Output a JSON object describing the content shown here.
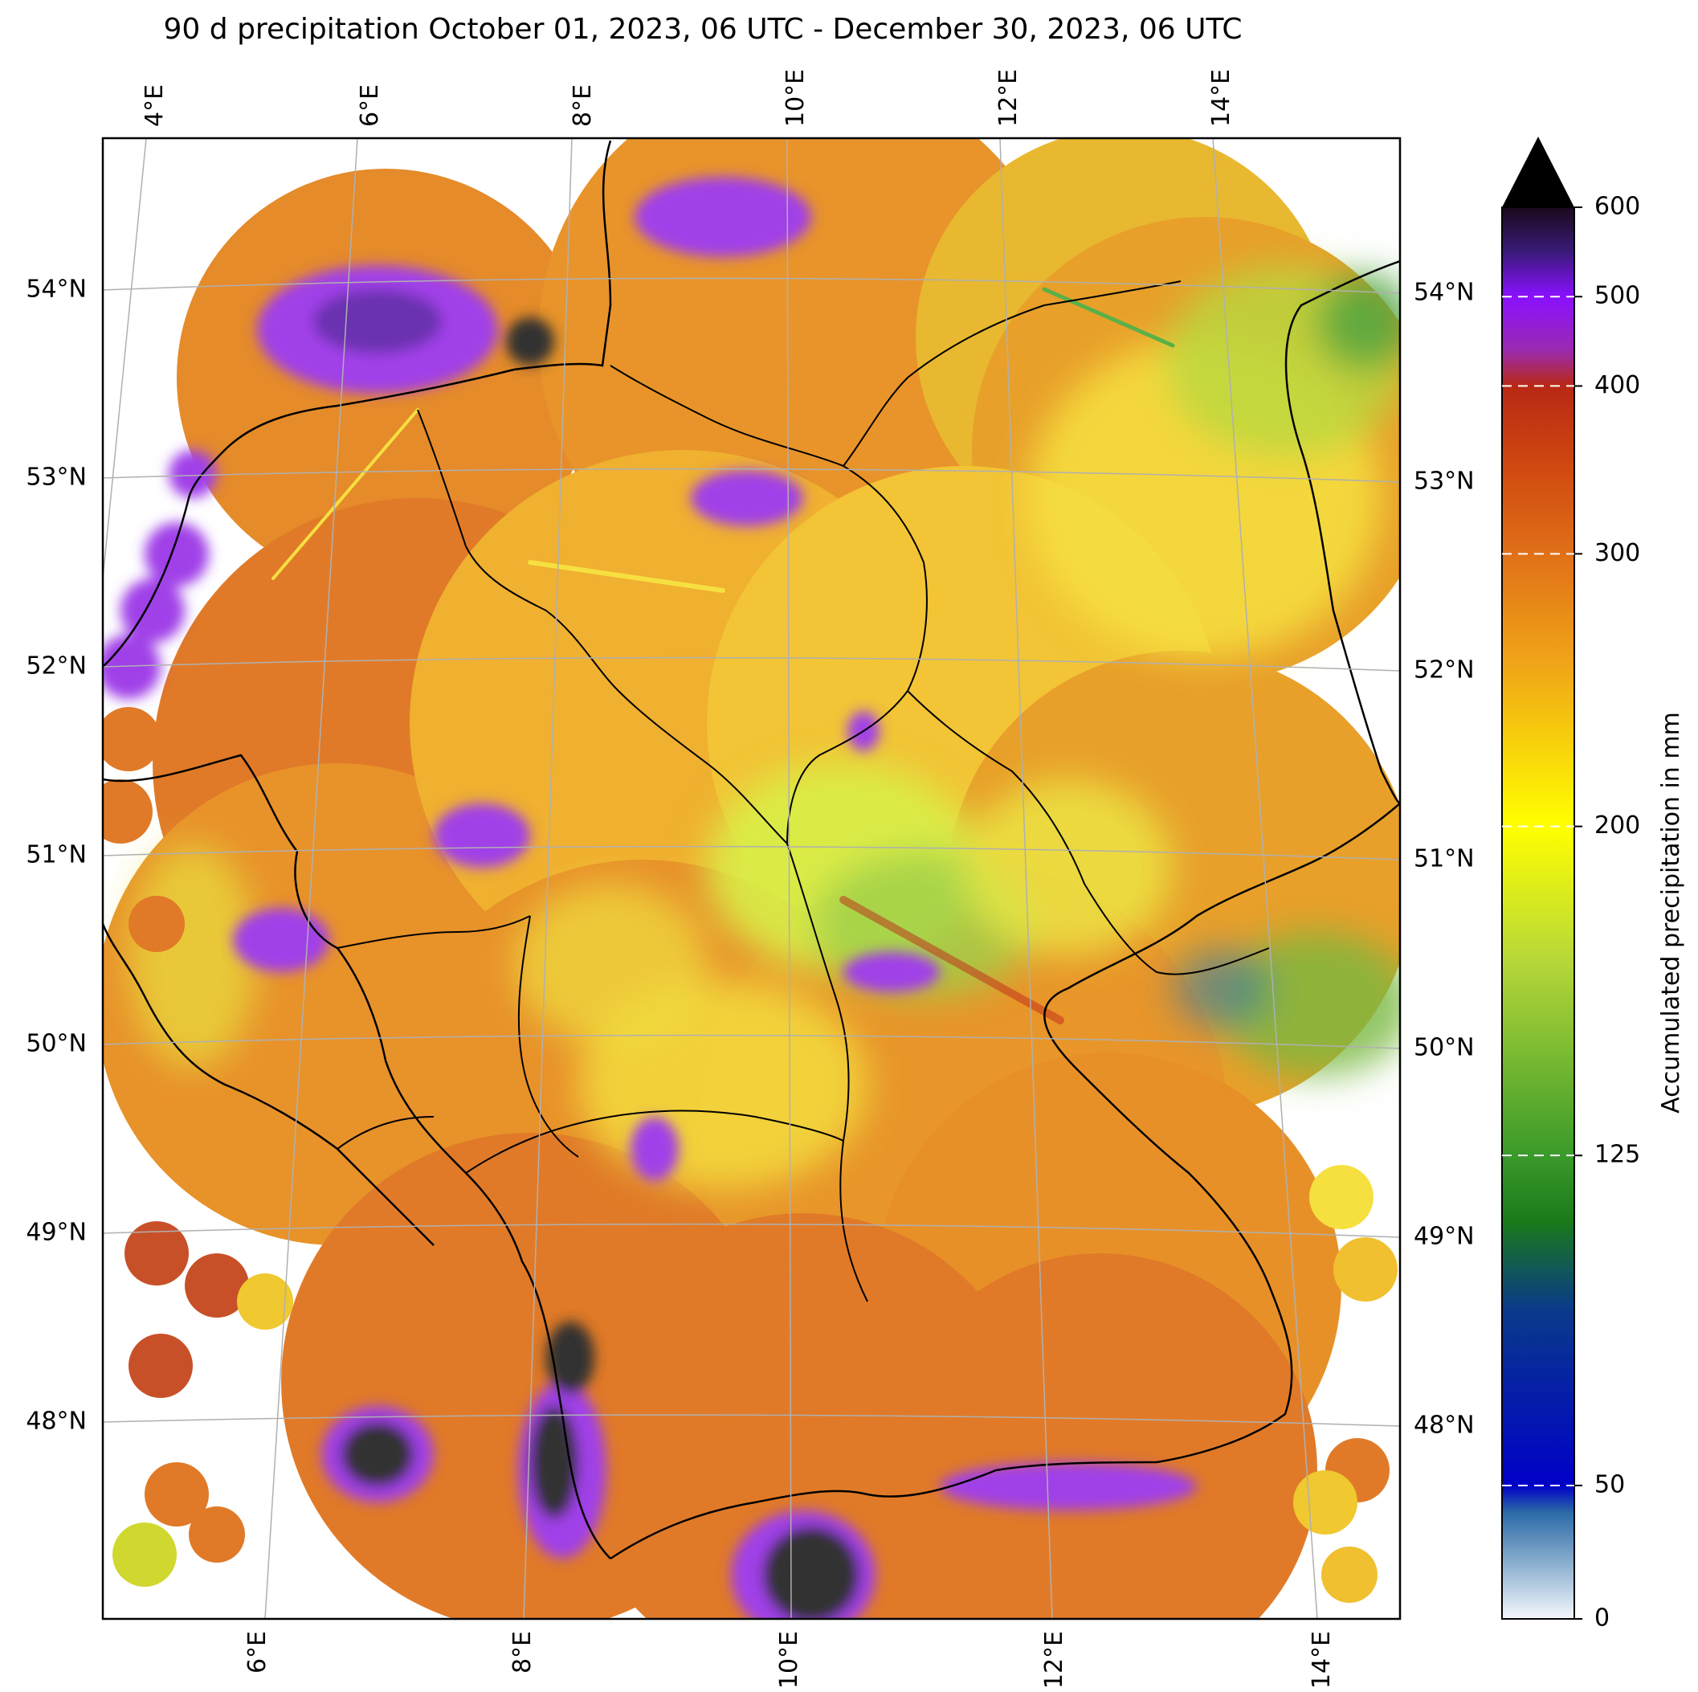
{
  "title": "90 d precipitation October 01, 2023, 06 UTC - December 30, 2023, 06 UTC",
  "map": {
    "top_lon_labels": [
      "4°E",
      "6°E",
      "8°E",
      "10°E",
      "12°E",
      "14°E"
    ],
    "bottom_lon_labels": [
      "6°E",
      "8°E",
      "10°E",
      "12°E",
      "14°E"
    ],
    "left_lat_labels": [
      "54°N",
      "53°N",
      "52°N",
      "51°N",
      "50°N",
      "49°N",
      "48°N"
    ],
    "right_lat_labels": [
      "54°N",
      "53°N",
      "52°N",
      "51°N",
      "50°N",
      "49°N",
      "48°N"
    ]
  },
  "colorbar": {
    "label": "Accumulated precipitation in mm",
    "ticks": [
      "0",
      "50",
      "125",
      "200",
      "300",
      "400",
      "500",
      "600"
    ],
    "stops": [
      {
        "value": 0,
        "color": "#f4f8fc"
      },
      {
        "value": 40,
        "color": "#2a6aa6"
      },
      {
        "value": 50,
        "color": "#0000c8"
      },
      {
        "value": 90,
        "color": "#0a3a8a"
      },
      {
        "value": 110,
        "color": "#1a7a1a"
      },
      {
        "value": 125,
        "color": "#3a9a2a"
      },
      {
        "value": 170,
        "color": "#b8d838"
      },
      {
        "value": 200,
        "color": "#ffff00"
      },
      {
        "value": 260,
        "color": "#f0a418"
      },
      {
        "value": 300,
        "color": "#e07018"
      },
      {
        "value": 350,
        "color": "#d04a10"
      },
      {
        "value": 400,
        "color": "#b82814"
      },
      {
        "value": 440,
        "color": "#9a2ab0"
      },
      {
        "value": 500,
        "color": "#8a10ff"
      },
      {
        "value": 550,
        "color": "#3a1a7a"
      },
      {
        "value": 600,
        "color": "#1a0a1a"
      }
    ],
    "extend_color": "#000000"
  }
}
